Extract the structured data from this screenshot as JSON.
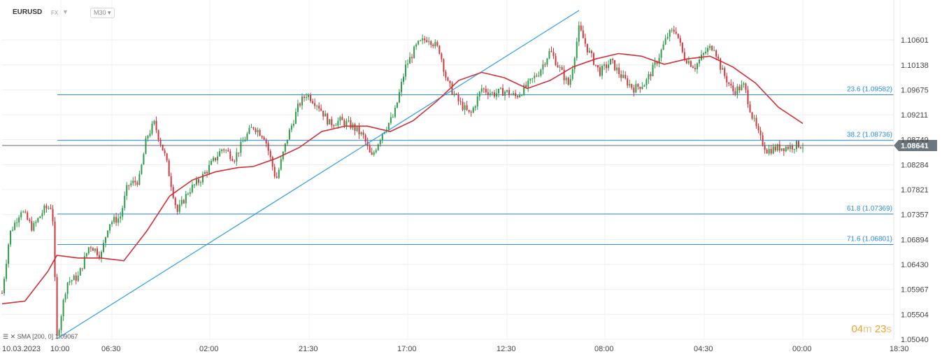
{
  "header": {
    "symbol": "EURUSD",
    "instrument_type": "FX",
    "timeframe": "M30"
  },
  "indicator": {
    "label": "SMA [200, 0] 1.09067"
  },
  "countdown": {
    "minutes": "04",
    "minutes_unit": "m",
    "seconds": "23",
    "seconds_unit": "s"
  },
  "colors": {
    "candle_up": "#2e9c4a",
    "candle_down": "#d0363d",
    "sma": "#d02f35",
    "fib": "#2f8ee0",
    "trendline": "#2f9be8",
    "price_tag": "#6b7780"
  },
  "chart_data": {
    "type": "candlestick",
    "symbol": "EURUSD",
    "ylim": [
      1.0504,
      1.1098
    ],
    "y_ticks": [
      "1.10601",
      "1.10138",
      "1.09675",
      "1.09211",
      "1.08749",
      "1.08284",
      "1.07821",
      "1.07357",
      "1.06894",
      "1.06430",
      "1.05967",
      "1.05504",
      "1.05040"
    ],
    "x_ticks": [
      "10.03.2023",
      "10:00",
      "06:30",
      "02:00",
      "21:30",
      "17:00",
      "12:30",
      "08:00",
      "04:30",
      "00:00",
      "18:30"
    ],
    "current_price": 1.08641,
    "current_price_label": "1.08641",
    "fib_levels": [
      {
        "label": "23.6 (1.09582)",
        "value": 1.09582
      },
      {
        "label": "38.2 (1.08736)",
        "value": 1.08736
      },
      {
        "label": "61.8 (1.07369)",
        "value": 1.07369
      },
      {
        "label": "71.6 (1.06801)",
        "value": 1.06801
      }
    ],
    "trendline": {
      "from": {
        "bar": 0.072,
        "value": 1.0505
      },
      "to": {
        "bar": 0.758,
        "value": 1.1115
      }
    },
    "price_path": [
      [
        0.0,
        1.059
      ],
      [
        0.01,
        1.07
      ],
      [
        0.025,
        1.0745
      ],
      [
        0.04,
        1.071
      ],
      [
        0.055,
        1.0745
      ],
      [
        0.066,
        1.0752
      ],
      [
        0.072,
        1.0505
      ],
      [
        0.085,
        1.061
      ],
      [
        0.1,
        1.062
      ],
      [
        0.115,
        1.068
      ],
      [
        0.13,
        1.066
      ],
      [
        0.14,
        1.072
      ],
      [
        0.155,
        1.073
      ],
      [
        0.165,
        1.079
      ],
      [
        0.18,
        1.08
      ],
      [
        0.19,
        1.088
      ],
      [
        0.2,
        1.0905
      ],
      [
        0.215,
        1.084
      ],
      [
        0.23,
        1.074
      ],
      [
        0.245,
        1.078
      ],
      [
        0.26,
        1.08
      ],
      [
        0.275,
        1.083
      ],
      [
        0.29,
        1.086
      ],
      [
        0.305,
        1.084
      ],
      [
        0.32,
        1.088
      ],
      [
        0.33,
        1.09
      ],
      [
        0.345,
        1.088
      ],
      [
        0.36,
        1.08
      ],
      [
        0.375,
        1.088
      ],
      [
        0.39,
        1.094
      ],
      [
        0.4,
        1.096
      ],
      [
        0.415,
        1.094
      ],
      [
        0.43,
        1.0905
      ],
      [
        0.445,
        1.091
      ],
      [
        0.46,
        1.09
      ],
      [
        0.475,
        1.088
      ],
      [
        0.485,
        1.084
      ],
      [
        0.5,
        1.089
      ],
      [
        0.515,
        1.092
      ],
      [
        0.53,
        1.101
      ],
      [
        0.545,
        1.105
      ],
      [
        0.56,
        1.1065
      ],
      [
        0.575,
        1.104
      ],
      [
        0.585,
        1.098
      ],
      [
        0.6,
        1.0945
      ],
      [
        0.615,
        1.092
      ],
      [
        0.63,
        1.097
      ],
      [
        0.645,
        1.096
      ],
      [
        0.66,
        1.0965
      ],
      [
        0.675,
        1.0955
      ],
      [
        0.69,
        1.0975
      ],
      [
        0.705,
        1.1
      ],
      [
        0.72,
        1.104
      ],
      [
        0.735,
        1.1
      ],
      [
        0.745,
        1.0975
      ],
      [
        0.758,
        1.1082
      ],
      [
        0.77,
        1.104
      ],
      [
        0.785,
        1.1
      ],
      [
        0.8,
        1.102
      ],
      [
        0.815,
        1.099
      ],
      [
        0.83,
        1.097
      ],
      [
        0.845,
        1.098
      ],
      [
        0.86,
        1.102
      ],
      [
        0.875,
        1.107
      ],
      [
        0.885,
        1.108
      ],
      [
        0.895,
        1.103
      ],
      [
        0.91,
        1.101
      ],
      [
        0.925,
        1.104
      ],
      [
        0.935,
        1.105
      ],
      [
        0.945,
        1.1005
      ],
      [
        0.96,
        1.0965
      ],
      [
        0.975,
        1.0975
      ],
      [
        0.985,
        1.092
      ],
      [
        0.995,
        1.088
      ],
      [
        1.005,
        1.0855
      ],
      [
        1.02,
        1.086
      ],
      [
        1.035,
        1.0862
      ],
      [
        1.046,
        1.0866
      ],
      [
        1.052,
        1.0864
      ]
    ],
    "sma_path": [
      [
        0.0,
        1.057
      ],
      [
        0.03,
        1.0575
      ],
      [
        0.06,
        1.063
      ],
      [
        0.072,
        1.066
      ],
      [
        0.1,
        1.0655
      ],
      [
        0.13,
        1.0655
      ],
      [
        0.16,
        1.065
      ],
      [
        0.19,
        1.0705
      ],
      [
        0.22,
        1.077
      ],
      [
        0.25,
        1.08
      ],
      [
        0.28,
        1.0815
      ],
      [
        0.31,
        1.0823
      ],
      [
        0.33,
        1.0825
      ],
      [
        0.36,
        1.084
      ],
      [
        0.39,
        1.086
      ],
      [
        0.42,
        1.089
      ],
      [
        0.45,
        1.09
      ],
      [
        0.48,
        1.09
      ],
      [
        0.51,
        1.089
      ],
      [
        0.54,
        1.091
      ],
      [
        0.57,
        1.0945
      ],
      [
        0.6,
        1.0985
      ],
      [
        0.63,
        1.1
      ],
      [
        0.66,
        1.099
      ],
      [
        0.69,
        1.097
      ],
      [
        0.72,
        1.0985
      ],
      [
        0.75,
        1.101
      ],
      [
        0.78,
        1.1025
      ],
      [
        0.81,
        1.1035
      ],
      [
        0.84,
        1.103
      ],
      [
        0.87,
        1.1015
      ],
      [
        0.9,
        1.1025
      ],
      [
        0.93,
        1.103
      ],
      [
        0.96,
        1.101
      ],
      [
        0.99,
        1.098
      ],
      [
        1.02,
        1.0935
      ],
      [
        1.052,
        1.0905
      ]
    ]
  }
}
